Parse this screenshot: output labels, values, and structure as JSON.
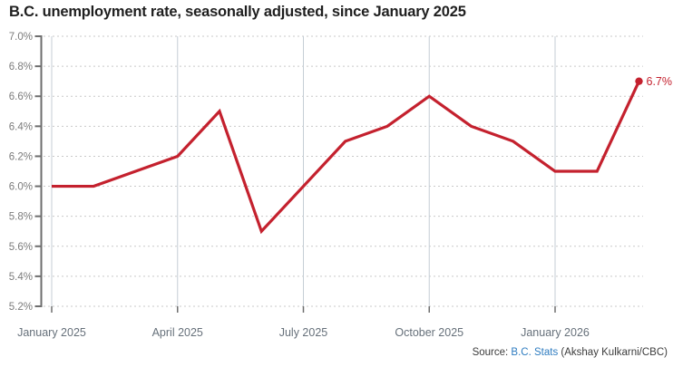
{
  "header": {
    "title": "B.C. unemployment rate, seasonally adjusted, since January 2025"
  },
  "footer": {
    "source_prefix": "Source: ",
    "source_link": "B.C. Stats",
    "source_suffix": " (Akshay Kulkarni/CBC)"
  },
  "colors": {
    "line": "#c4212e",
    "title_text": "#1f1f1f",
    "axis": "#6e6e6e",
    "y_label": "#7b7b7b",
    "x_label": "#66707a",
    "grid_dashed": "#c9c9c9",
    "grid_vertical": "#c5ced6",
    "source_text": "#3c3c3c",
    "link": "#2e7cc0",
    "background": "#ffffff"
  },
  "chart_data": {
    "type": "line",
    "title": "B.C. unemployment rate, seasonally adjusted, since January 2025",
    "unit": "%",
    "x_categories": [
      "January 2025",
      "February 2025",
      "March 2025",
      "April 2025",
      "May 2025",
      "June 2025",
      "July 2025",
      "August 2025",
      "September 2025",
      "October 2025",
      "November 2025",
      "December 2025",
      "January 2026",
      "February 2026",
      "March 2026"
    ],
    "values": [
      6.0,
      6.0,
      6.1,
      6.2,
      6.5,
      5.7,
      6.0,
      6.3,
      6.4,
      6.6,
      6.4,
      6.3,
      6.1,
      6.1,
      6.7
    ],
    "ylim": [
      5.2,
      7.0
    ],
    "y_ticks": [
      {
        "value": 7.0,
        "label": "7.0%"
      },
      {
        "value": 6.8,
        "label": "6.8%"
      },
      {
        "value": 6.6,
        "label": "6.6%"
      },
      {
        "value": 6.4,
        "label": "6.4%"
      },
      {
        "value": 6.2,
        "label": "6.2%"
      },
      {
        "value": 6.0,
        "label": "6.0%"
      },
      {
        "value": 5.8,
        "label": "5.8%"
      },
      {
        "value": 5.6,
        "label": "5.6%"
      },
      {
        "value": 5.4,
        "label": "5.4%"
      },
      {
        "value": 5.2,
        "label": "5.2%"
      }
    ],
    "x_axis_ticks": [
      {
        "index": 0,
        "label": "January 2025"
      },
      {
        "index": 3,
        "label": "April 2025"
      },
      {
        "index": 6,
        "label": "July 2025"
      },
      {
        "index": 9,
        "label": "October 2025"
      },
      {
        "index": 12,
        "label": "January 2026"
      }
    ],
    "end_label": "6.7%",
    "grid": {
      "horizontal": "dashed",
      "vertical": "solid-at-quarter-ticks"
    },
    "legend": "none"
  }
}
